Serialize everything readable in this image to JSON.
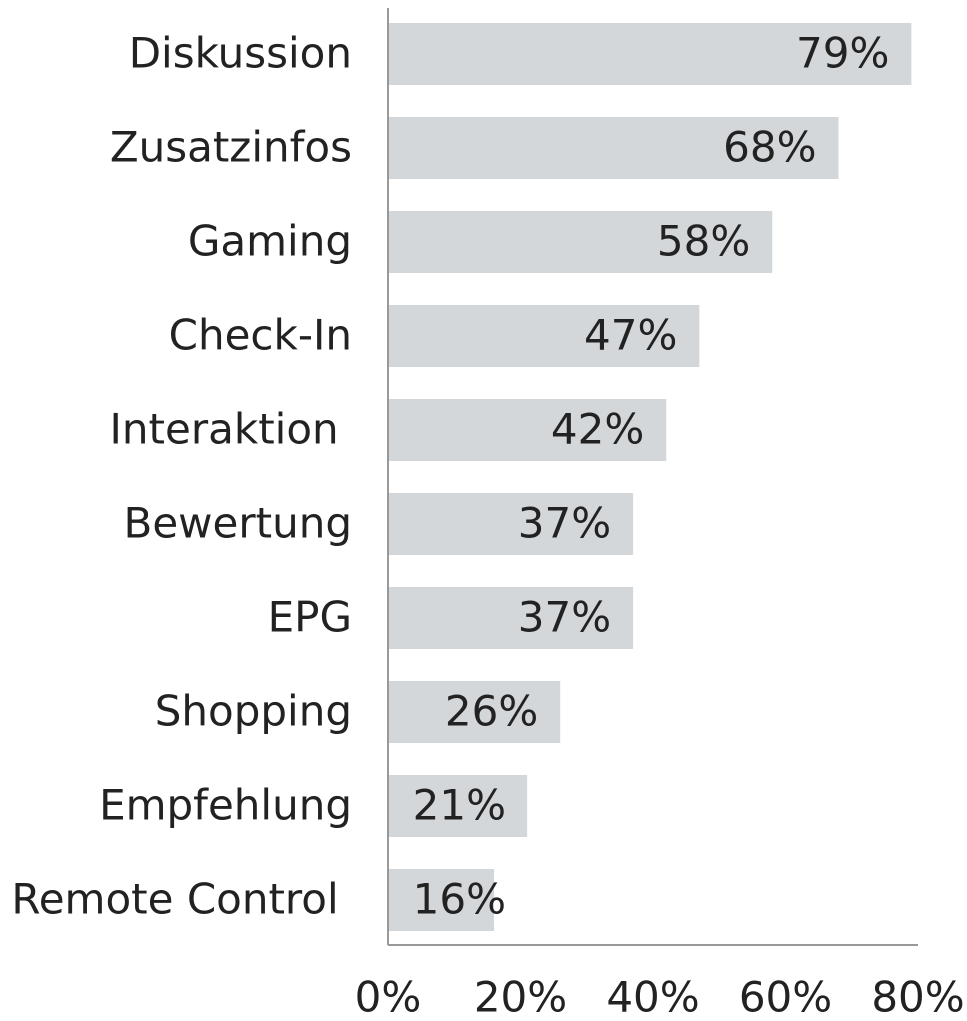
{
  "chart_data": {
    "type": "bar",
    "orientation": "horizontal",
    "categories": [
      "Diskussion",
      "Zusatzinfos",
      "Gaming",
      "Check-In",
      "Interaktion ",
      "Bewertung",
      "EPG",
      "Shopping",
      "Empfehlung",
      "Remote Control "
    ],
    "values": [
      79,
      68,
      58,
      47,
      42,
      37,
      37,
      26,
      21,
      16
    ],
    "value_labels": [
      "79%",
      "68%",
      "58%",
      "47%",
      "42%",
      "37%",
      "37%",
      "26%",
      "21%",
      "16%"
    ],
    "color": "#d3d7da",
    "xlim": [
      0,
      80
    ],
    "xticks": [
      {
        "value": 0,
        "label": "0%"
      },
      {
        "value": 20,
        "label": "20%"
      },
      {
        "value": 40,
        "label": "40%"
      },
      {
        "value": 60,
        "label": "60%"
      },
      {
        "value": 80,
        "label": "80%"
      }
    ],
    "grid": false
  }
}
